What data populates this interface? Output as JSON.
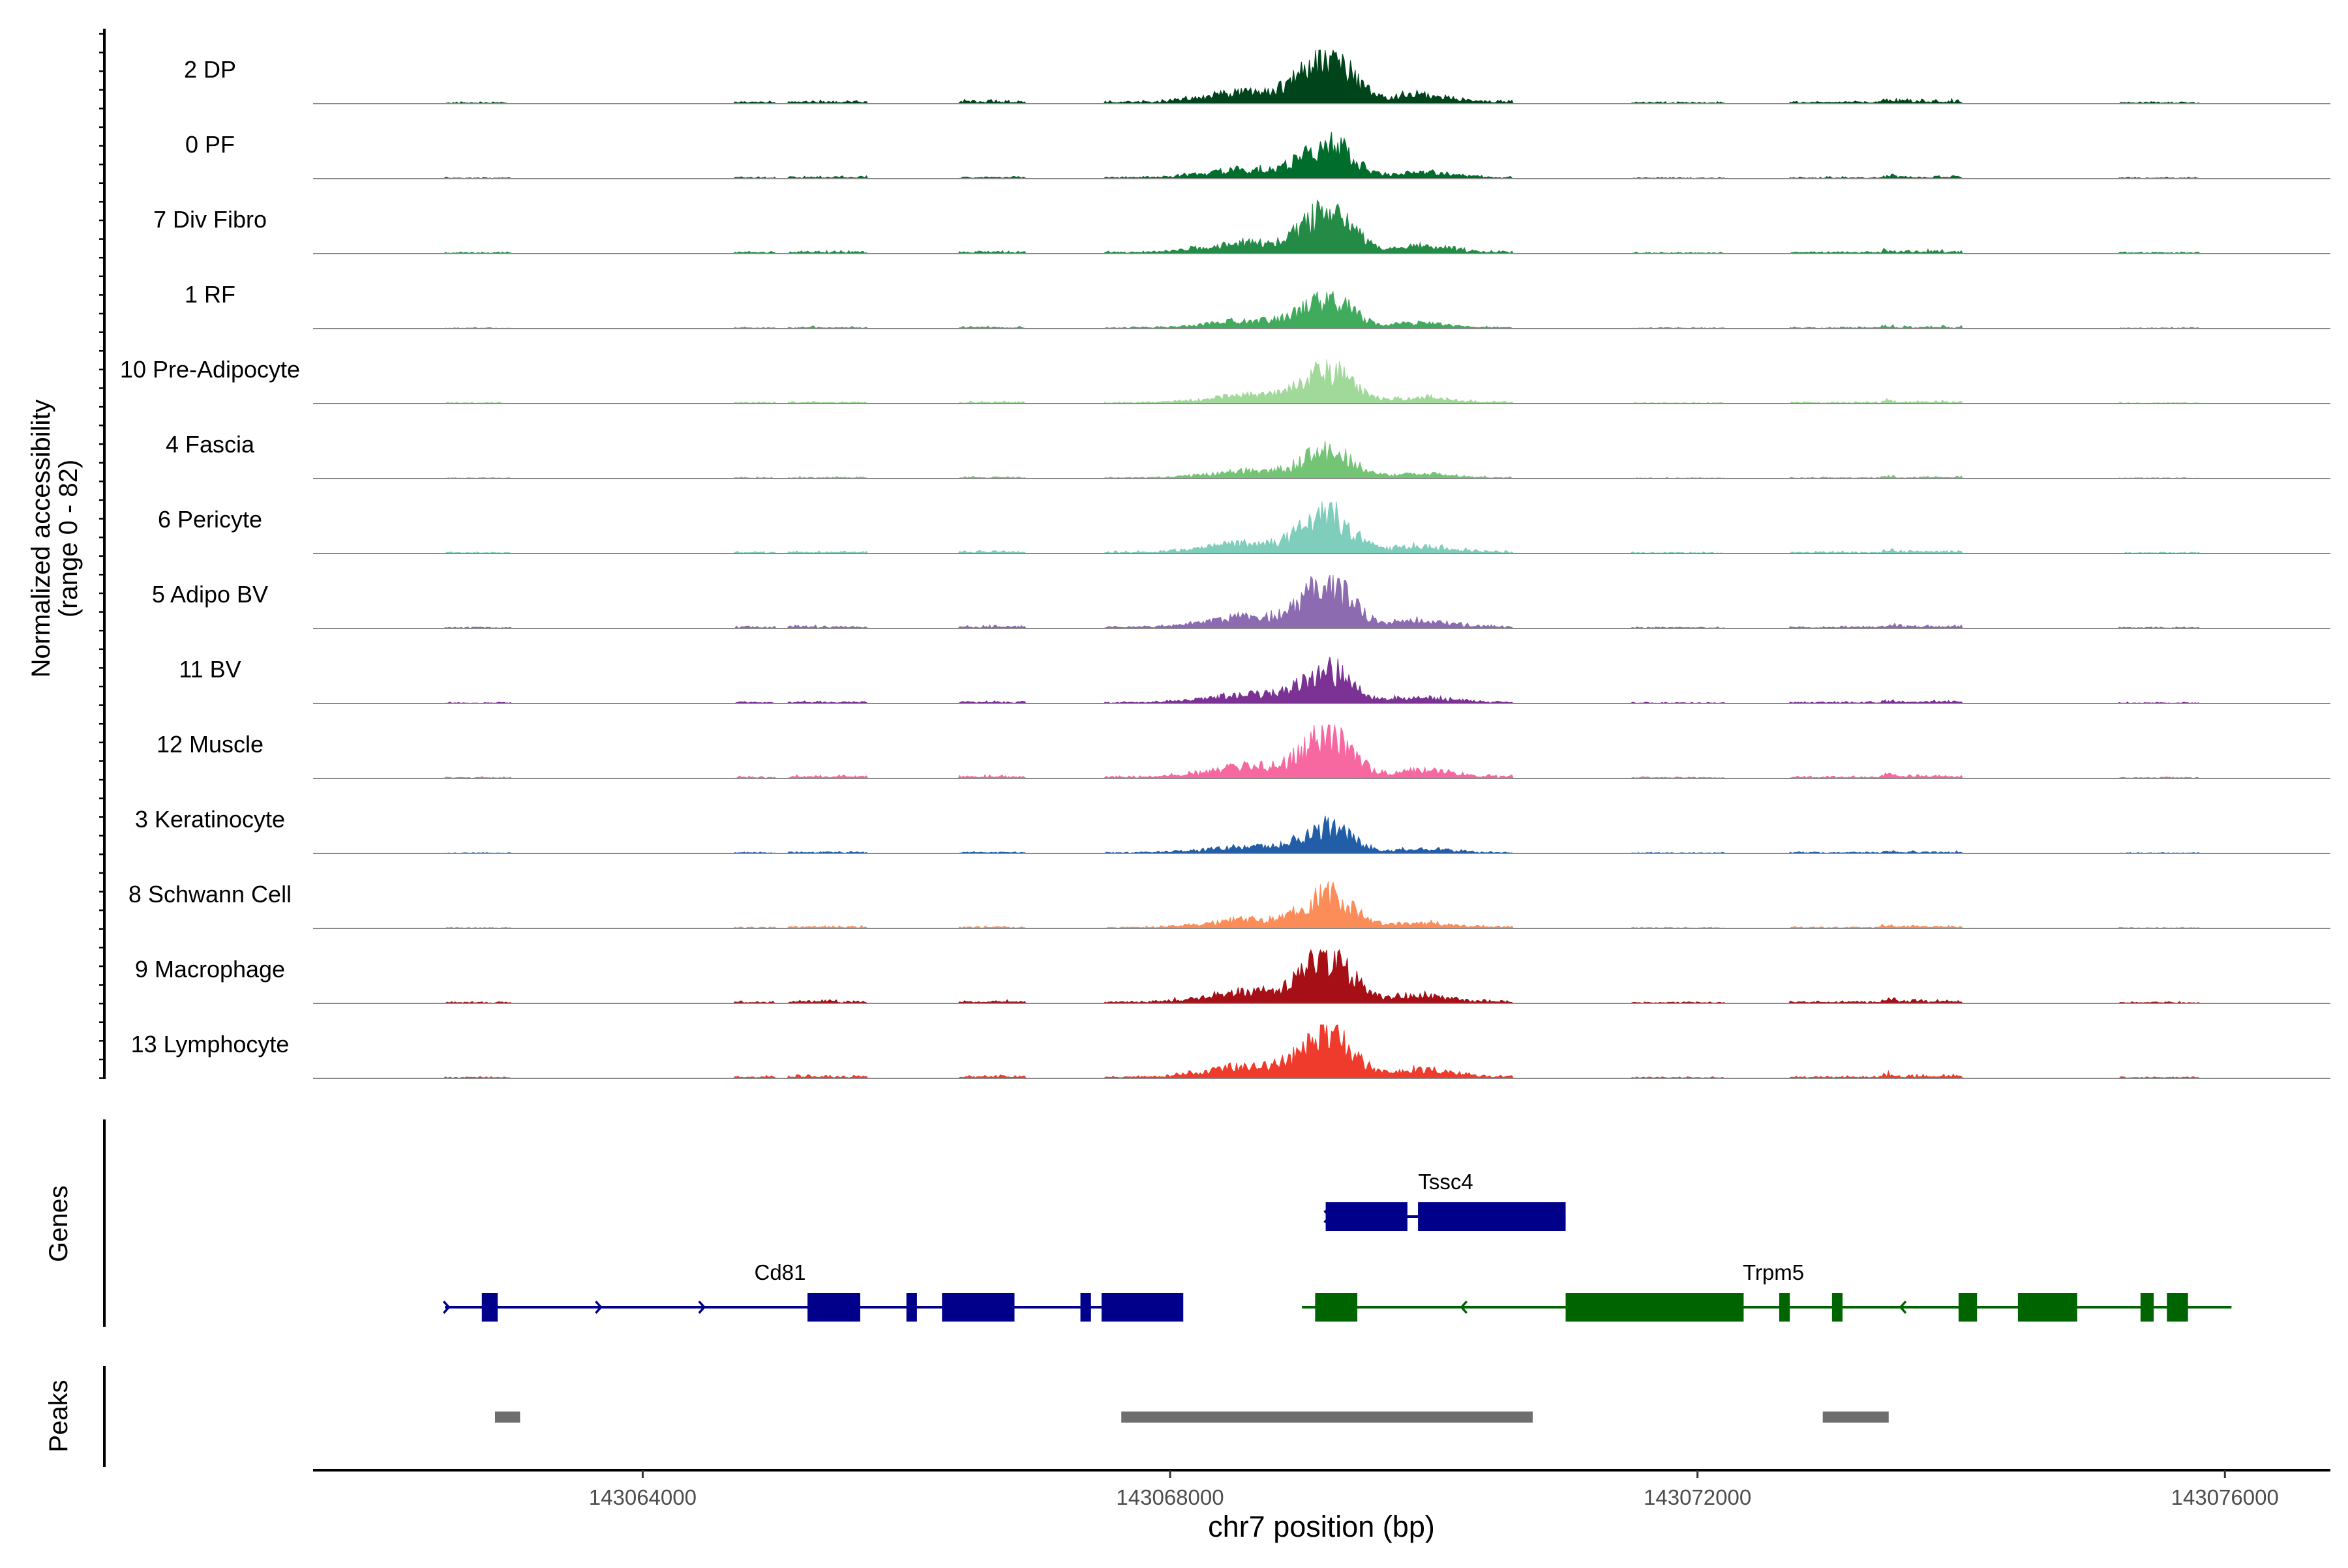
{
  "chart_data": {
    "type": "area",
    "title": "",
    "xlabel": "chr7 position (bp)",
    "ylabel_line1": "Normalized accessibility",
    "ylabel_line2": "(range 0 - 82)",
    "y_range": [
      0,
      82
    ],
    "x_range": [
      143061500,
      143076800
    ],
    "x_ticks": [
      {
        "value": 143064000,
        "label": "143064000"
      },
      {
        "value": 143068000,
        "label": "143068000"
      },
      {
        "value": 143072000,
        "label": "143072000"
      },
      {
        "value": 143076000,
        "label": "143076000"
      }
    ],
    "track_background": [
      {
        "start": 143062500,
        "end": 143063000,
        "h": 2
      },
      {
        "start": 143064700,
        "end": 143065000,
        "h": 3
      },
      {
        "start": 143065100,
        "end": 143065700,
        "h": 4
      },
      {
        "start": 143066400,
        "end": 143066900,
        "h": 4
      },
      {
        "start": 143067500,
        "end": 143068200,
        "h": 3
      },
      {
        "start": 143069700,
        "end": 143070600,
        "h": 4
      },
      {
        "start": 143071500,
        "end": 143072200,
        "h": 2
      },
      {
        "start": 143072700,
        "end": 143073500,
        "h": 3
      },
      {
        "start": 143073400,
        "end": 143074000,
        "h": 5
      },
      {
        "start": 143075200,
        "end": 143075800,
        "h": 2
      }
    ],
    "tracks": [
      {
        "label": "2 DP",
        "color": "#00441b",
        "scale": 1.0
      },
      {
        "label": "0 PF",
        "color": "#006d2c",
        "scale": 0.72
      },
      {
        "label": "7 Div Fibro",
        "color": "#238b45",
        "scale": 0.85
      },
      {
        "label": "1 RF",
        "color": "#41ab5d",
        "scale": 0.62
      },
      {
        "label": "10 Pre-Adipocyte",
        "color": "#a1d99b",
        "scale": 0.68
      },
      {
        "label": "4 Fascia",
        "color": "#74c476",
        "scale": 0.58
      },
      {
        "label": "6 Pericyte",
        "color": "#7fcdbb",
        "scale": 0.82
      },
      {
        "label": "5 Adipo BV",
        "color": "#8c6bb1",
        "scale": 0.9
      },
      {
        "label": "11 BV",
        "color": "#7b3294",
        "scale": 0.7
      },
      {
        "label": "12 Muscle",
        "color": "#f768a1",
        "scale": 0.93
      },
      {
        "label": "3 Keratinocyte",
        "color": "#225ea8",
        "scale": 0.55
      },
      {
        "label": "8 Schwann Cell",
        "color": "#fc8d59",
        "scale": 0.68
      },
      {
        "label": "9 Macrophage",
        "color": "#a50f15",
        "scale": 0.95
      },
      {
        "label": "13 Lymphocyte",
        "color": "#ef3b2c",
        "scale": 0.95
      }
    ],
    "genes_panel_label": "Genes",
    "genes": [
      {
        "name": "Tssc4",
        "strand": "+",
        "color": "#00008b",
        "row": 0,
        "start": 143069180,
        "end": 143071000,
        "exons": [
          [
            143069180,
            143069800
          ],
          [
            143069880,
            143071000
          ]
        ]
      },
      {
        "name": "Cd81",
        "strand": "+",
        "color": "#00008b",
        "row": 1,
        "start": 143062500,
        "end": 143067950,
        "exons": [
          [
            143062780,
            143062900
          ],
          [
            143065250,
            143065650
          ],
          [
            143066000,
            143066080
          ],
          [
            143066270,
            143066820
          ],
          [
            143067320,
            143067400
          ],
          [
            143067480,
            143068100
          ]
        ]
      },
      {
        "name": "Trpm5",
        "strand": "-",
        "color": "#006400",
        "row": 1,
        "start": 143069000,
        "end": 143076050,
        "exons": [
          [
            143069100,
            143069420
          ],
          [
            143071000,
            143072350
          ],
          [
            143072620,
            143072700
          ],
          [
            143073020,
            143073100
          ],
          [
            143073980,
            143074120
          ],
          [
            143074430,
            143074880
          ],
          [
            143075360,
            143075460
          ],
          [
            143075560,
            143075720
          ]
        ]
      }
    ],
    "peaks_panel_label": "Peaks",
    "peaks_color": "#6e6e6e",
    "peaks": [
      {
        "start": 143062880,
        "end": 143063070
      },
      {
        "start": 143067630,
        "end": 143070750
      },
      {
        "start": 143072950,
        "end": 143073450
      }
    ]
  }
}
